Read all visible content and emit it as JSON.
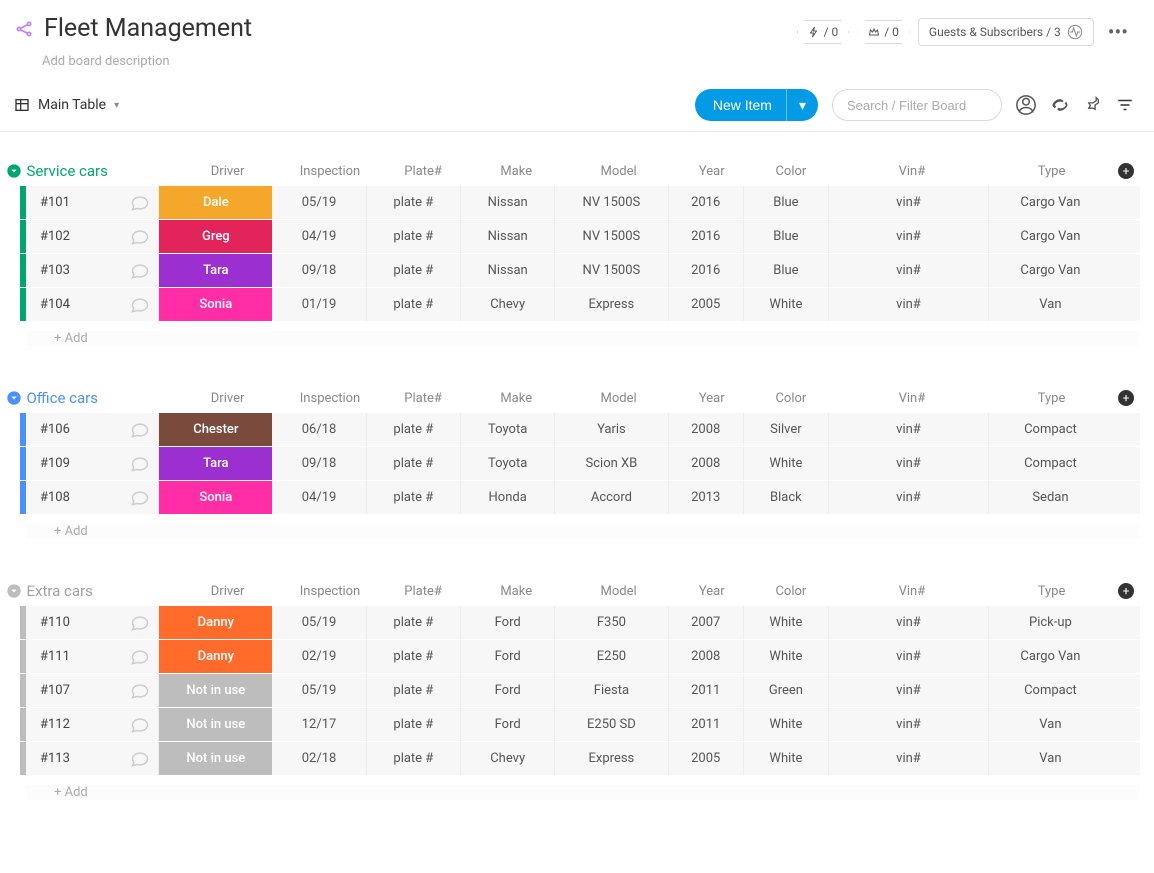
{
  "header": {
    "title": "Fleet Management",
    "description_placeholder": "Add board description",
    "badges": {
      "thunder": "/ 0",
      "crown": "/ 0"
    },
    "guests_label": "Guests & Subscribers / 3"
  },
  "subheader": {
    "main_table": "Main Table",
    "new_item": "New Item",
    "search_placeholder": "Search / Filter Board"
  },
  "columns": {
    "driver": "Driver",
    "inspection": "Inspection",
    "plate": "Plate#",
    "make": "Make",
    "model": "Model",
    "year": "Year",
    "color": "Color",
    "vin": "Vin#",
    "type": "Type"
  },
  "add_row_label": "+ Add",
  "driver_colors": {
    "Dale": "#f4a72a",
    "Greg": "#e3245a",
    "Tara": "#9b2fcf",
    "Sonia": "#ff2ea6",
    "Chester": "#7a4a3d",
    "Danny": "#ff6b2b",
    "Not in use": "#bdbdbd"
  },
  "groups": [
    {
      "name": "Service cars",
      "color": "#00a66e",
      "name_color": "#00a66e",
      "collapse_color": "#00a66e",
      "rows": [
        {
          "id": "#101",
          "driver": "Dale",
          "inspection": "05/19",
          "plate": "plate #",
          "make": "Nissan",
          "model": "NV 1500S",
          "year": "2016",
          "color": "Blue",
          "vin": "vin#",
          "type": "Cargo Van"
        },
        {
          "id": "#102",
          "driver": "Greg",
          "inspection": "04/19",
          "plate": "plate #",
          "make": "Nissan",
          "model": "NV 1500S",
          "year": "2016",
          "color": "Blue",
          "vin": "vin#",
          "type": "Cargo Van"
        },
        {
          "id": "#103",
          "driver": "Tara",
          "inspection": "09/18",
          "plate": "plate #",
          "make": "Nissan",
          "model": "NV 1500S",
          "year": "2016",
          "color": "Blue",
          "vin": "vin#",
          "type": "Cargo Van"
        },
        {
          "id": "#104",
          "driver": "Sonia",
          "inspection": "01/19",
          "plate": "plate #",
          "make": "Chevy",
          "model": "Express",
          "year": "2005",
          "color": "White",
          "vin": "vin#",
          "type": "Van"
        }
      ]
    },
    {
      "name": "Office cars",
      "color": "#4a90ff",
      "name_color": "#4a90ff",
      "collapse_color": "#4a90ff",
      "rows": [
        {
          "id": "#106",
          "driver": "Chester",
          "inspection": "06/18",
          "plate": "plate #",
          "make": "Toyota",
          "model": "Yaris",
          "year": "2008",
          "color": "Silver",
          "vin": "vin#",
          "type": "Compact"
        },
        {
          "id": "#109",
          "driver": "Tara",
          "inspection": "09/18",
          "plate": "plate #",
          "make": "Toyota",
          "model": "Scion XB",
          "year": "2008",
          "color": "White",
          "vin": "vin#",
          "type": "Compact"
        },
        {
          "id": "#108",
          "driver": "Sonia",
          "inspection": "04/19",
          "plate": "plate #",
          "make": "Honda",
          "model": "Accord",
          "year": "2013",
          "color": "Black",
          "vin": "vin#",
          "type": "Sedan"
        }
      ]
    },
    {
      "name": "Extra cars",
      "color": "#bdbdbd",
      "name_color": "#a0a0a0",
      "collapse_color": "#bdbdbd",
      "rows": [
        {
          "id": "#110",
          "driver": "Danny",
          "inspection": "05/19",
          "plate": "plate #",
          "make": "Ford",
          "model": "F350",
          "year": "2007",
          "color": "White",
          "vin": "vin#",
          "type": "Pick-up"
        },
        {
          "id": "#111",
          "driver": "Danny",
          "inspection": "02/19",
          "plate": "plate #",
          "make": "Ford",
          "model": "E250",
          "year": "2008",
          "color": "White",
          "vin": "vin#",
          "type": "Cargo Van"
        },
        {
          "id": "#107",
          "driver": "Not in use",
          "inspection": "05/19",
          "plate": "plate #",
          "make": "Ford",
          "model": "Fiesta",
          "year": "2011",
          "color": "Green",
          "vin": "vin#",
          "type": "Compact"
        },
        {
          "id": "#112",
          "driver": "Not in use",
          "inspection": "12/17",
          "plate": "plate #",
          "make": "Ford",
          "model": "E250 SD",
          "year": "2011",
          "color": "White",
          "vin": "vin#",
          "type": "Van"
        },
        {
          "id": "#113",
          "driver": "Not in use",
          "inspection": "02/18",
          "plate": "plate #",
          "make": "Chevy",
          "model": "Express",
          "year": "2005",
          "color": "White",
          "vin": "vin#",
          "type": "Van"
        }
      ]
    }
  ]
}
